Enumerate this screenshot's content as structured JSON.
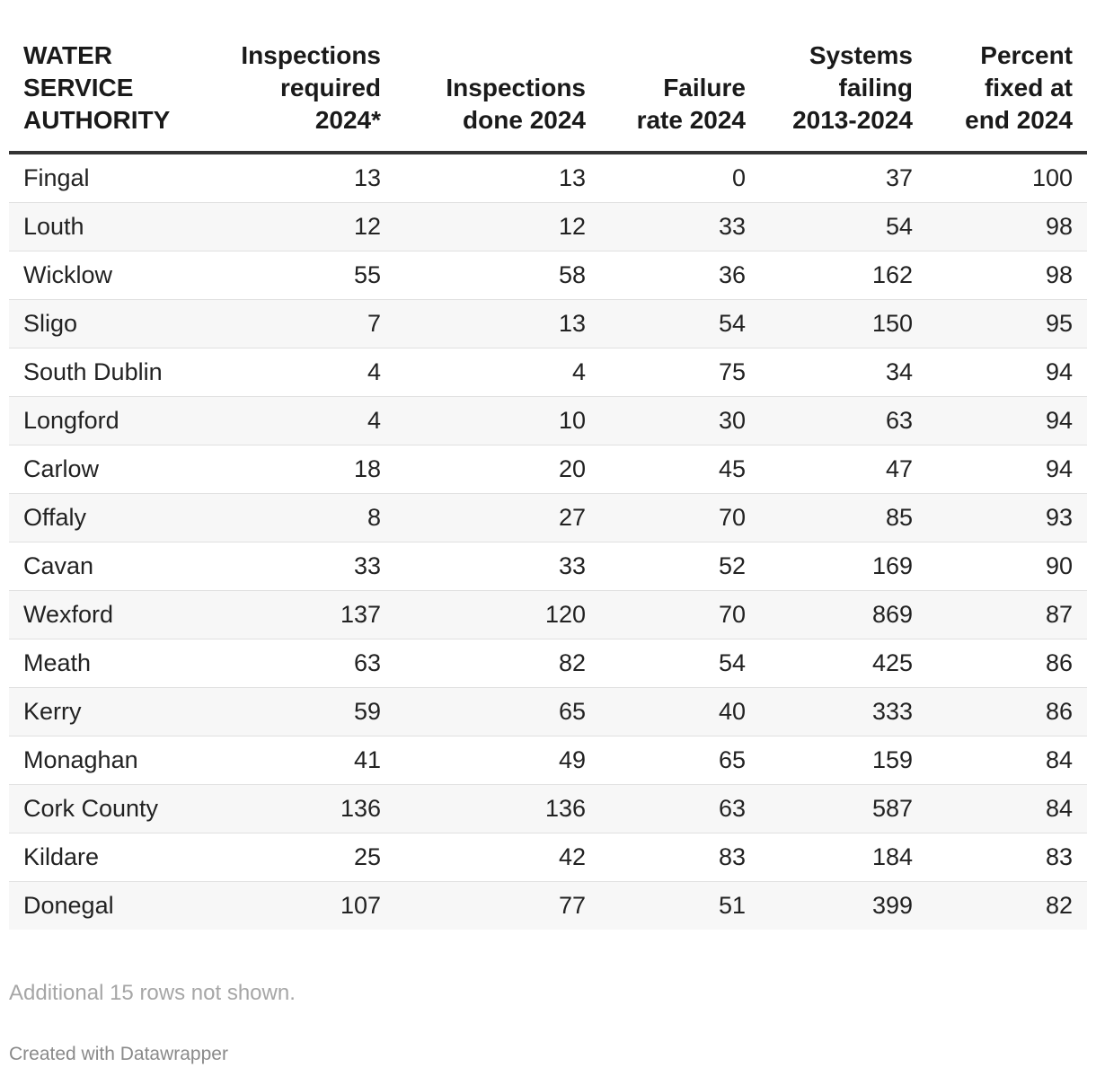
{
  "chart_data": {
    "type": "table",
    "columns": [
      "WATER SERVICE AUTHORITY",
      "Inspections required 2024*",
      "Inspections done 2024",
      "Failure rate 2024",
      "Systems failing 2013-2024",
      "Percent fixed at end 2024"
    ],
    "rows": [
      [
        "Fingal",
        "13",
        "13",
        "0",
        "37",
        "100"
      ],
      [
        "Louth",
        "12",
        "12",
        "33",
        "54",
        "98"
      ],
      [
        "Wicklow",
        "55",
        "58",
        "36",
        "162",
        "98"
      ],
      [
        "Sligo",
        "7",
        "13",
        "54",
        "150",
        "95"
      ],
      [
        "South Dublin",
        "4",
        "4",
        "75",
        "34",
        "94"
      ],
      [
        "Longford",
        "4",
        "10",
        "30",
        "63",
        "94"
      ],
      [
        "Carlow",
        "18",
        "20",
        "45",
        "47",
        "94"
      ],
      [
        "Offaly",
        "8",
        "27",
        "70",
        "85",
        "93"
      ],
      [
        "Cavan",
        "33",
        "33",
        "52",
        "169",
        "90"
      ],
      [
        "Wexford",
        "137",
        "120",
        "70",
        "869",
        "87"
      ],
      [
        "Meath",
        "63",
        "82",
        "54",
        "425",
        "86"
      ],
      [
        "Kerry",
        "59",
        "65",
        "40",
        "333",
        "86"
      ],
      [
        "Monaghan",
        "41",
        "49",
        "65",
        "159",
        "84"
      ],
      [
        "Cork County",
        "136",
        "136",
        "63",
        "587",
        "84"
      ],
      [
        "Kildare",
        "25",
        "42",
        "83",
        "184",
        "83"
      ],
      [
        "Donegal",
        "107",
        "77",
        "51",
        "399",
        "82"
      ]
    ]
  },
  "footer": {
    "note": "Additional 15 rows not shown.",
    "credit": "Created with Datawrapper"
  },
  "colors": {
    "header_rule": "#333333",
    "row_stripe": "#f7f7f7",
    "row_divider": "#e1e1e1",
    "note_text": "#a6a6a6"
  }
}
